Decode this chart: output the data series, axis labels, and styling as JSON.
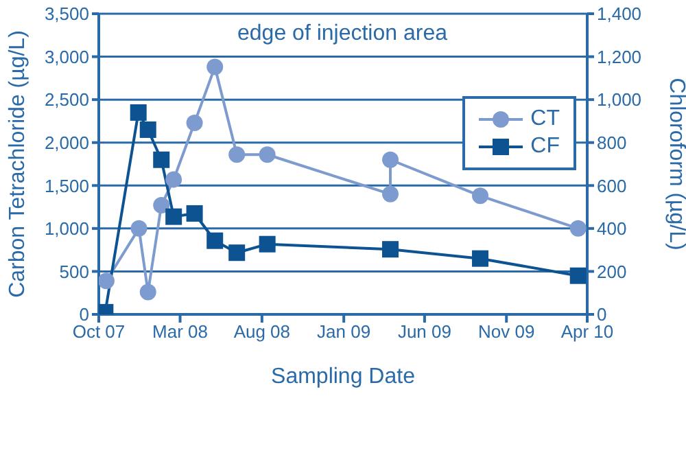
{
  "chart_data": {
    "type": "line",
    "xlabel": "Sampling Date",
    "ylabel": "Carbon Tetrachloride (µg/L)",
    "y2label": "Chloroform (µg/L)",
    "annotations": [
      "edge of injection area"
    ],
    "series": [
      {
        "name": "CT",
        "color": "#7d9bcf",
        "marker": "circle",
        "x": [
          "2007-10-15",
          "2007-12-15",
          "2008-01-01",
          "2008-01-26",
          "2008-02-18",
          "2008-03-28",
          "2008-05-05",
          "2008-06-15",
          "2008-08-11",
          "2009-03-29",
          "2009-03-29",
          "2009-09-13",
          "2010-03-15"
        ],
        "values": [
          390,
          1000,
          260,
          1270,
          1570,
          2230,
          2880,
          1860,
          1860,
          1400,
          1800,
          1380,
          1000
        ]
      },
      {
        "name": "CF",
        "color": "#0d5391",
        "marker": "square",
        "axis": "y2",
        "x": [
          "2007-10-13",
          "2007-12-14",
          "2008-01-01",
          "2008-01-26",
          "2008-02-18",
          "2008-03-28",
          "2008-05-05",
          "2008-06-15",
          "2008-08-11",
          "2009-03-29",
          "2009-09-13",
          "2010-03-15"
        ],
        "values": [
          10,
          940,
          860,
          720,
          455,
          470,
          343,
          287,
          327,
          303,
          260,
          180
        ]
      }
    ],
    "xlim": [
      "2007-10",
      "2010-04"
    ],
    "xticks": [
      {
        "value": "2007-10",
        "label": "Oct 07"
      },
      {
        "value": "2008-03",
        "label": "Mar 08"
      },
      {
        "value": "2008-08",
        "label": "Aug 08"
      },
      {
        "value": "2009-01",
        "label": "Jan 09"
      },
      {
        "value": "2009-06",
        "label": "Jun 09"
      },
      {
        "value": "2009-11",
        "label": "Nov 09"
      },
      {
        "value": "2010-04",
        "label": "Apr 10"
      }
    ],
    "ylim": [
      0,
      3500
    ],
    "yticks": [
      0,
      500,
      {
        "value": 1000,
        "label": "1,000"
      },
      {
        "value": 1500,
        "label": "1,500"
      },
      {
        "value": 2000,
        "label": "2,000"
      },
      {
        "value": 2500,
        "label": "2,500"
      },
      {
        "value": 3000,
        "label": "3,000"
      },
      {
        "value": 3500,
        "label": "3,500"
      }
    ],
    "y2lim": [
      0,
      1400
    ],
    "y2ticks": [
      0,
      200,
      400,
      600,
      800,
      {
        "value": 1000,
        "label": "1,000"
      },
      {
        "value": 1200,
        "label": "1,200"
      },
      {
        "value": 1400,
        "label": "1,400"
      }
    ],
    "grid": "y",
    "legend": "top right",
    "line_style": "solid"
  }
}
